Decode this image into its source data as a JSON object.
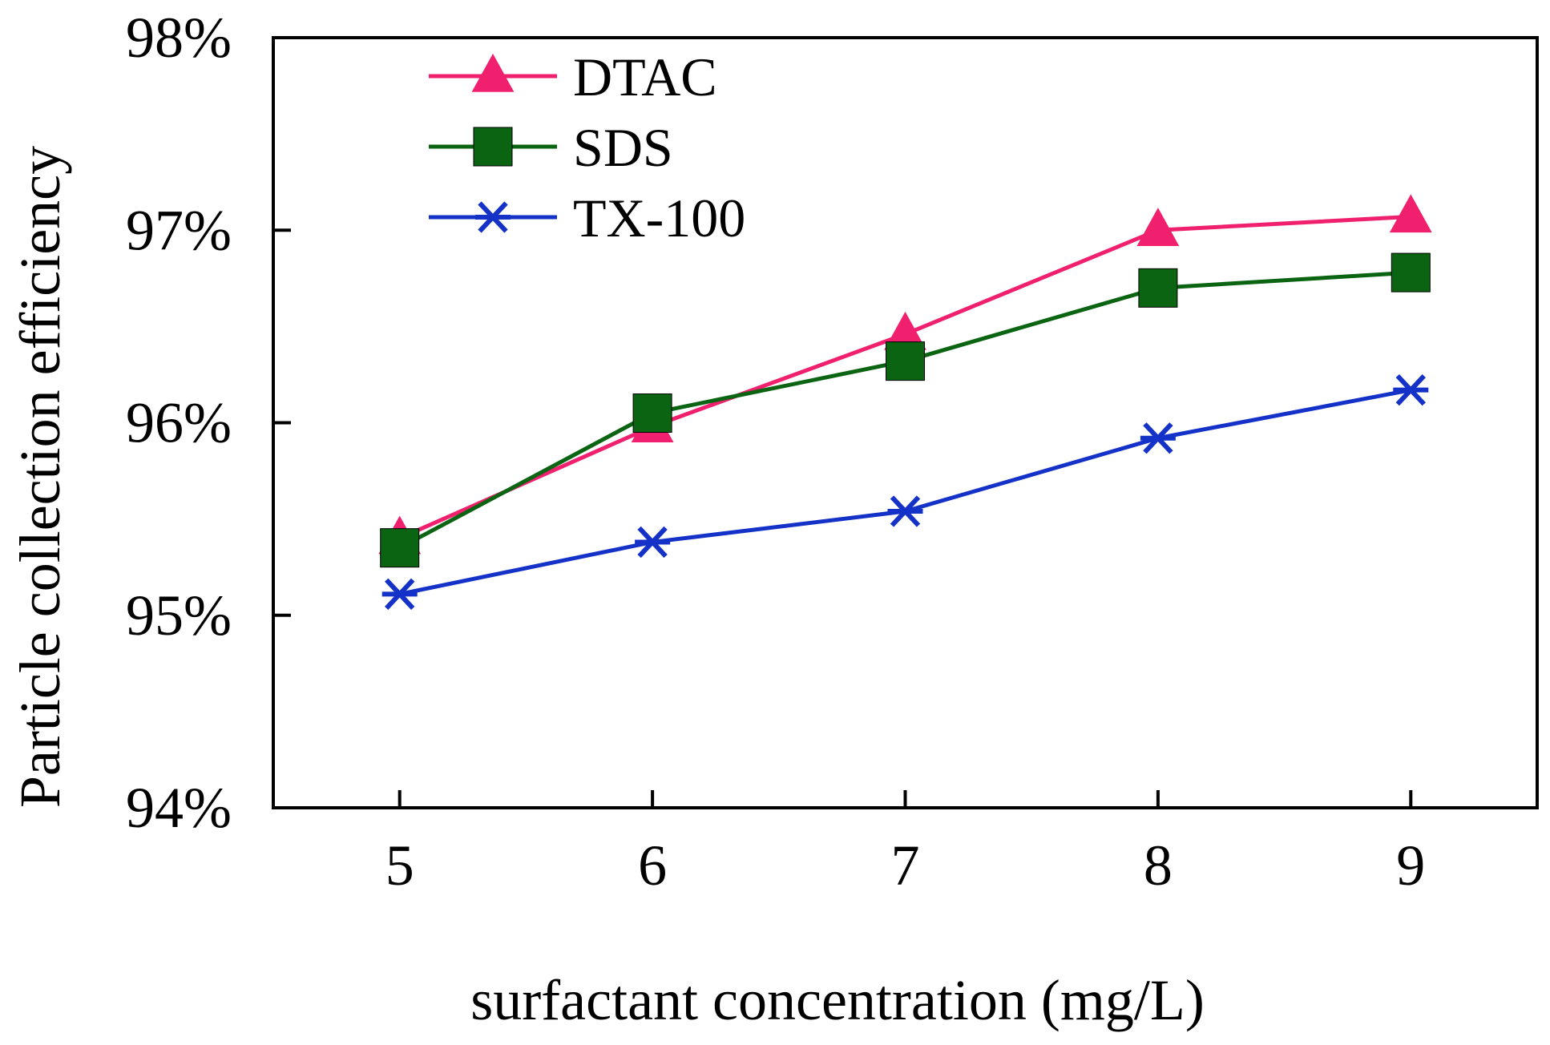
{
  "chart_data": {
    "type": "line",
    "title": "",
    "xlabel": "surfactant concentration (mg/L)",
    "ylabel": "Particle collection efficiency",
    "x": [
      5,
      6,
      7,
      8,
      9
    ],
    "xlim": [
      4.5,
      9.5
    ],
    "ylim": [
      94,
      98
    ],
    "yticks": [
      94,
      95,
      96,
      97,
      98
    ],
    "ytick_labels": [
      "94%",
      "95%",
      "96%",
      "97%",
      "98%"
    ],
    "xtick_labels": [
      "5",
      "6",
      "7",
      "8",
      "9"
    ],
    "grid": false,
    "legend_position": "top-left",
    "series": [
      {
        "name": "DTAC",
        "marker": "triangle",
        "color": "#f0206e",
        "values": [
          95.4,
          95.98,
          96.46,
          97.0,
          97.07
        ]
      },
      {
        "name": "SDS",
        "marker": "square",
        "color": "#0a6412",
        "values": [
          95.35,
          96.05,
          96.32,
          96.7,
          96.78
        ]
      },
      {
        "name": "TX-100",
        "marker": "asterisk",
        "color": "#1432c8",
        "values": [
          95.11,
          95.38,
          95.54,
          95.92,
          96.17
        ]
      }
    ]
  }
}
